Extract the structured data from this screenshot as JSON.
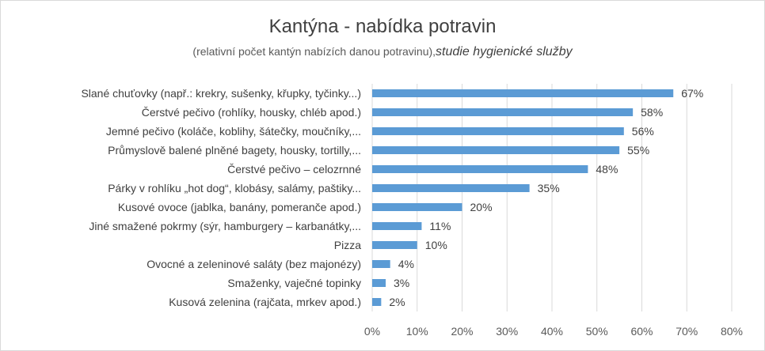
{
  "chart_data": {
    "type": "bar",
    "orientation": "horizontal",
    "title": "Kantýna - nabídka potravin",
    "subtitle": "(relativní počet kantýn nabízích danou potravinu),",
    "subtitle_italic": "studie  hygienické služby",
    "categories": [
      "Slané chuťovky  (např.: krekry, sušenky, křupky, tyčinky...)",
      "Čerstvé pečivo (rohlíky, housky, chléb apod.)",
      "Jemné pečivo  (koláče, koblihy, šátečky, moučníky,...",
      "Průmyslově balené plněné bagety, housky, tortilly,...",
      "Čerstvé pečivo – celozrnné",
      "Párky v rohlíku „hot dog“, klobásy, salámy, paštiky...",
      "Kusové ovoce  (jablka, banány, pomeranče apod.)",
      "Jiné smažené pokrmy  (sýr, hamburgery – karbanátky,...",
      "Pizza",
      "Ovocné a zeleninové saláty  (bez majonézy)",
      "Smaženky, vaječné topinky",
      "Kusová zelenina  (rajčata, mrkev apod.)"
    ],
    "values": [
      67,
      58,
      56,
      55,
      48,
      35,
      20,
      11,
      10,
      4,
      3,
      2
    ],
    "value_labels": [
      "67%",
      "58%",
      "56%",
      "55%",
      "48%",
      "35%",
      "20%",
      "11%",
      "10%",
      "4%",
      "3%",
      "2%"
    ],
    "xlim": [
      0,
      80
    ],
    "xticks": [
      "0%",
      "10%",
      "20%",
      "30%",
      "40%",
      "50%",
      "60%",
      "70%",
      "80%"
    ],
    "grid": true,
    "bar_color": "#5b9bd5",
    "grid_color": "#d9d9d9"
  }
}
